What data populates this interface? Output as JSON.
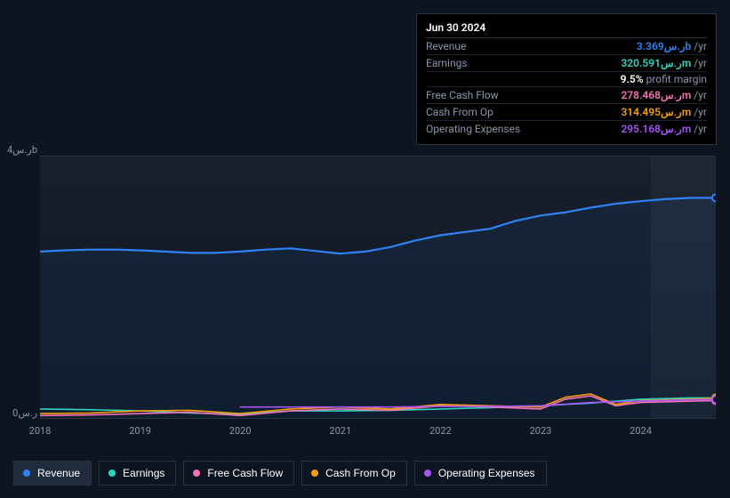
{
  "tooltip": {
    "date": "Jun 30 2024",
    "rows": [
      {
        "label": "Revenue",
        "value": "3.369",
        "currency": "ر.س",
        "unit": "b",
        "suffix": "/yr",
        "color": "#2f81f7"
      },
      {
        "label": "Earnings",
        "value": "320.591",
        "currency": "ر.س",
        "unit": "m",
        "suffix": "/yr",
        "color": "#2dd4bf",
        "extra_pct": "9.5%",
        "extra_text": "profit margin"
      },
      {
        "label": "Free Cash Flow",
        "value": "278.468",
        "currency": "ر.س",
        "unit": "m",
        "suffix": "/yr",
        "color": "#f472b6"
      },
      {
        "label": "Cash From Op",
        "value": "314.495",
        "currency": "ر.س",
        "unit": "m",
        "suffix": "/yr",
        "color": "#f59e0b"
      },
      {
        "label": "Operating Expenses",
        "value": "295.168",
        "currency": "ر.س",
        "unit": "m",
        "suffix": "/yr",
        "color": "#a855f7"
      }
    ]
  },
  "chart": {
    "type": "line",
    "background_color": "#0d1520",
    "plot_gradient_top": "#17202c",
    "plot_gradient_bottom": "#0d1520",
    "grid_color": "#2a3440",
    "axis_color": "#8a96a8",
    "ylim": [
      0,
      4
    ],
    "y_unit_label_top": "ر.س4b",
    "y_unit_label_bottom": "ر.س0",
    "x_labels": [
      "2018",
      "2019",
      "2020",
      "2021",
      "2022",
      "2023",
      "2024"
    ],
    "x_domain": [
      2018,
      2024.75
    ],
    "highlight_band": {
      "from": 2024.1,
      "to": 2024.75
    },
    "marker_x": 2024.75,
    "font_size_axis": 11,
    "series": [
      {
        "name": "Revenue",
        "color": "#2f81f7",
        "line_width": 2.2,
        "active": true,
        "points": [
          [
            2018.0,
            2.55
          ],
          [
            2018.25,
            2.57
          ],
          [
            2018.5,
            2.58
          ],
          [
            2018.75,
            2.58
          ],
          [
            2019.0,
            2.57
          ],
          [
            2019.25,
            2.55
          ],
          [
            2019.5,
            2.53
          ],
          [
            2019.75,
            2.53
          ],
          [
            2020.0,
            2.55
          ],
          [
            2020.25,
            2.58
          ],
          [
            2020.5,
            2.6
          ],
          [
            2020.75,
            2.56
          ],
          [
            2021.0,
            2.52
          ],
          [
            2021.25,
            2.55
          ],
          [
            2021.5,
            2.62
          ],
          [
            2021.75,
            2.72
          ],
          [
            2022.0,
            2.8
          ],
          [
            2022.25,
            2.85
          ],
          [
            2022.5,
            2.9
          ],
          [
            2022.75,
            3.02
          ],
          [
            2023.0,
            3.1
          ],
          [
            2023.25,
            3.15
          ],
          [
            2023.5,
            3.22
          ],
          [
            2023.75,
            3.28
          ],
          [
            2024.0,
            3.32
          ],
          [
            2024.25,
            3.35
          ],
          [
            2024.5,
            3.37
          ],
          [
            2024.75,
            3.369
          ]
        ]
      },
      {
        "name": "Earnings",
        "color": "#2dd4bf",
        "line_width": 1.6,
        "active": false,
        "points": [
          [
            2018.0,
            0.15
          ],
          [
            2018.5,
            0.14
          ],
          [
            2019.0,
            0.12
          ],
          [
            2019.5,
            0.09
          ],
          [
            2020.0,
            0.07
          ],
          [
            2020.5,
            0.12
          ],
          [
            2021.0,
            0.12
          ],
          [
            2021.5,
            0.13
          ],
          [
            2022.0,
            0.15
          ],
          [
            2022.5,
            0.17
          ],
          [
            2023.0,
            0.2
          ],
          [
            2023.5,
            0.24
          ],
          [
            2024.0,
            0.3
          ],
          [
            2024.5,
            0.32
          ],
          [
            2024.75,
            0.3206
          ]
        ]
      },
      {
        "name": "Free Cash Flow",
        "color": "#f472b6",
        "line_width": 1.6,
        "active": false,
        "points": [
          [
            2018.0,
            0.05
          ],
          [
            2018.5,
            0.06
          ],
          [
            2019.0,
            0.08
          ],
          [
            2019.5,
            0.1
          ],
          [
            2020.0,
            0.05
          ],
          [
            2020.5,
            0.12
          ],
          [
            2021.0,
            0.15
          ],
          [
            2021.5,
            0.13
          ],
          [
            2022.0,
            0.2
          ],
          [
            2022.5,
            0.18
          ],
          [
            2023.0,
            0.15
          ],
          [
            2023.25,
            0.3
          ],
          [
            2023.5,
            0.35
          ],
          [
            2023.75,
            0.2
          ],
          [
            2024.0,
            0.25
          ],
          [
            2024.5,
            0.27
          ],
          [
            2024.75,
            0.2785
          ]
        ]
      },
      {
        "name": "Cash From Op",
        "color": "#f59e0b",
        "line_width": 1.6,
        "active": false,
        "points": [
          [
            2018.0,
            0.08
          ],
          [
            2018.5,
            0.09
          ],
          [
            2019.0,
            0.12
          ],
          [
            2019.5,
            0.13
          ],
          [
            2020.0,
            0.08
          ],
          [
            2020.5,
            0.15
          ],
          [
            2021.0,
            0.18
          ],
          [
            2021.5,
            0.15
          ],
          [
            2022.0,
            0.22
          ],
          [
            2022.5,
            0.2
          ],
          [
            2023.0,
            0.18
          ],
          [
            2023.25,
            0.33
          ],
          [
            2023.5,
            0.38
          ],
          [
            2023.75,
            0.22
          ],
          [
            2024.0,
            0.28
          ],
          [
            2024.5,
            0.3
          ],
          [
            2024.75,
            0.3145
          ]
        ]
      },
      {
        "name": "Operating Expenses",
        "color": "#a855f7",
        "line_width": 1.6,
        "active": false,
        "points": [
          [
            2020.0,
            0.18
          ],
          [
            2020.5,
            0.18
          ],
          [
            2021.0,
            0.18
          ],
          [
            2021.5,
            0.18
          ],
          [
            2022.0,
            0.19
          ],
          [
            2022.5,
            0.19
          ],
          [
            2023.0,
            0.2
          ],
          [
            2023.5,
            0.25
          ],
          [
            2024.0,
            0.27
          ],
          [
            2024.5,
            0.29
          ],
          [
            2024.75,
            0.2952
          ]
        ]
      }
    ]
  },
  "legend": {
    "items": [
      {
        "label": "Revenue",
        "color": "#2f81f7",
        "active": true
      },
      {
        "label": "Earnings",
        "color": "#2dd4bf",
        "active": false
      },
      {
        "label": "Free Cash Flow",
        "color": "#f472b6",
        "active": false
      },
      {
        "label": "Cash From Op",
        "color": "#f59e0b",
        "active": false
      },
      {
        "label": "Operating Expenses",
        "color": "#a855f7",
        "active": false
      }
    ]
  }
}
